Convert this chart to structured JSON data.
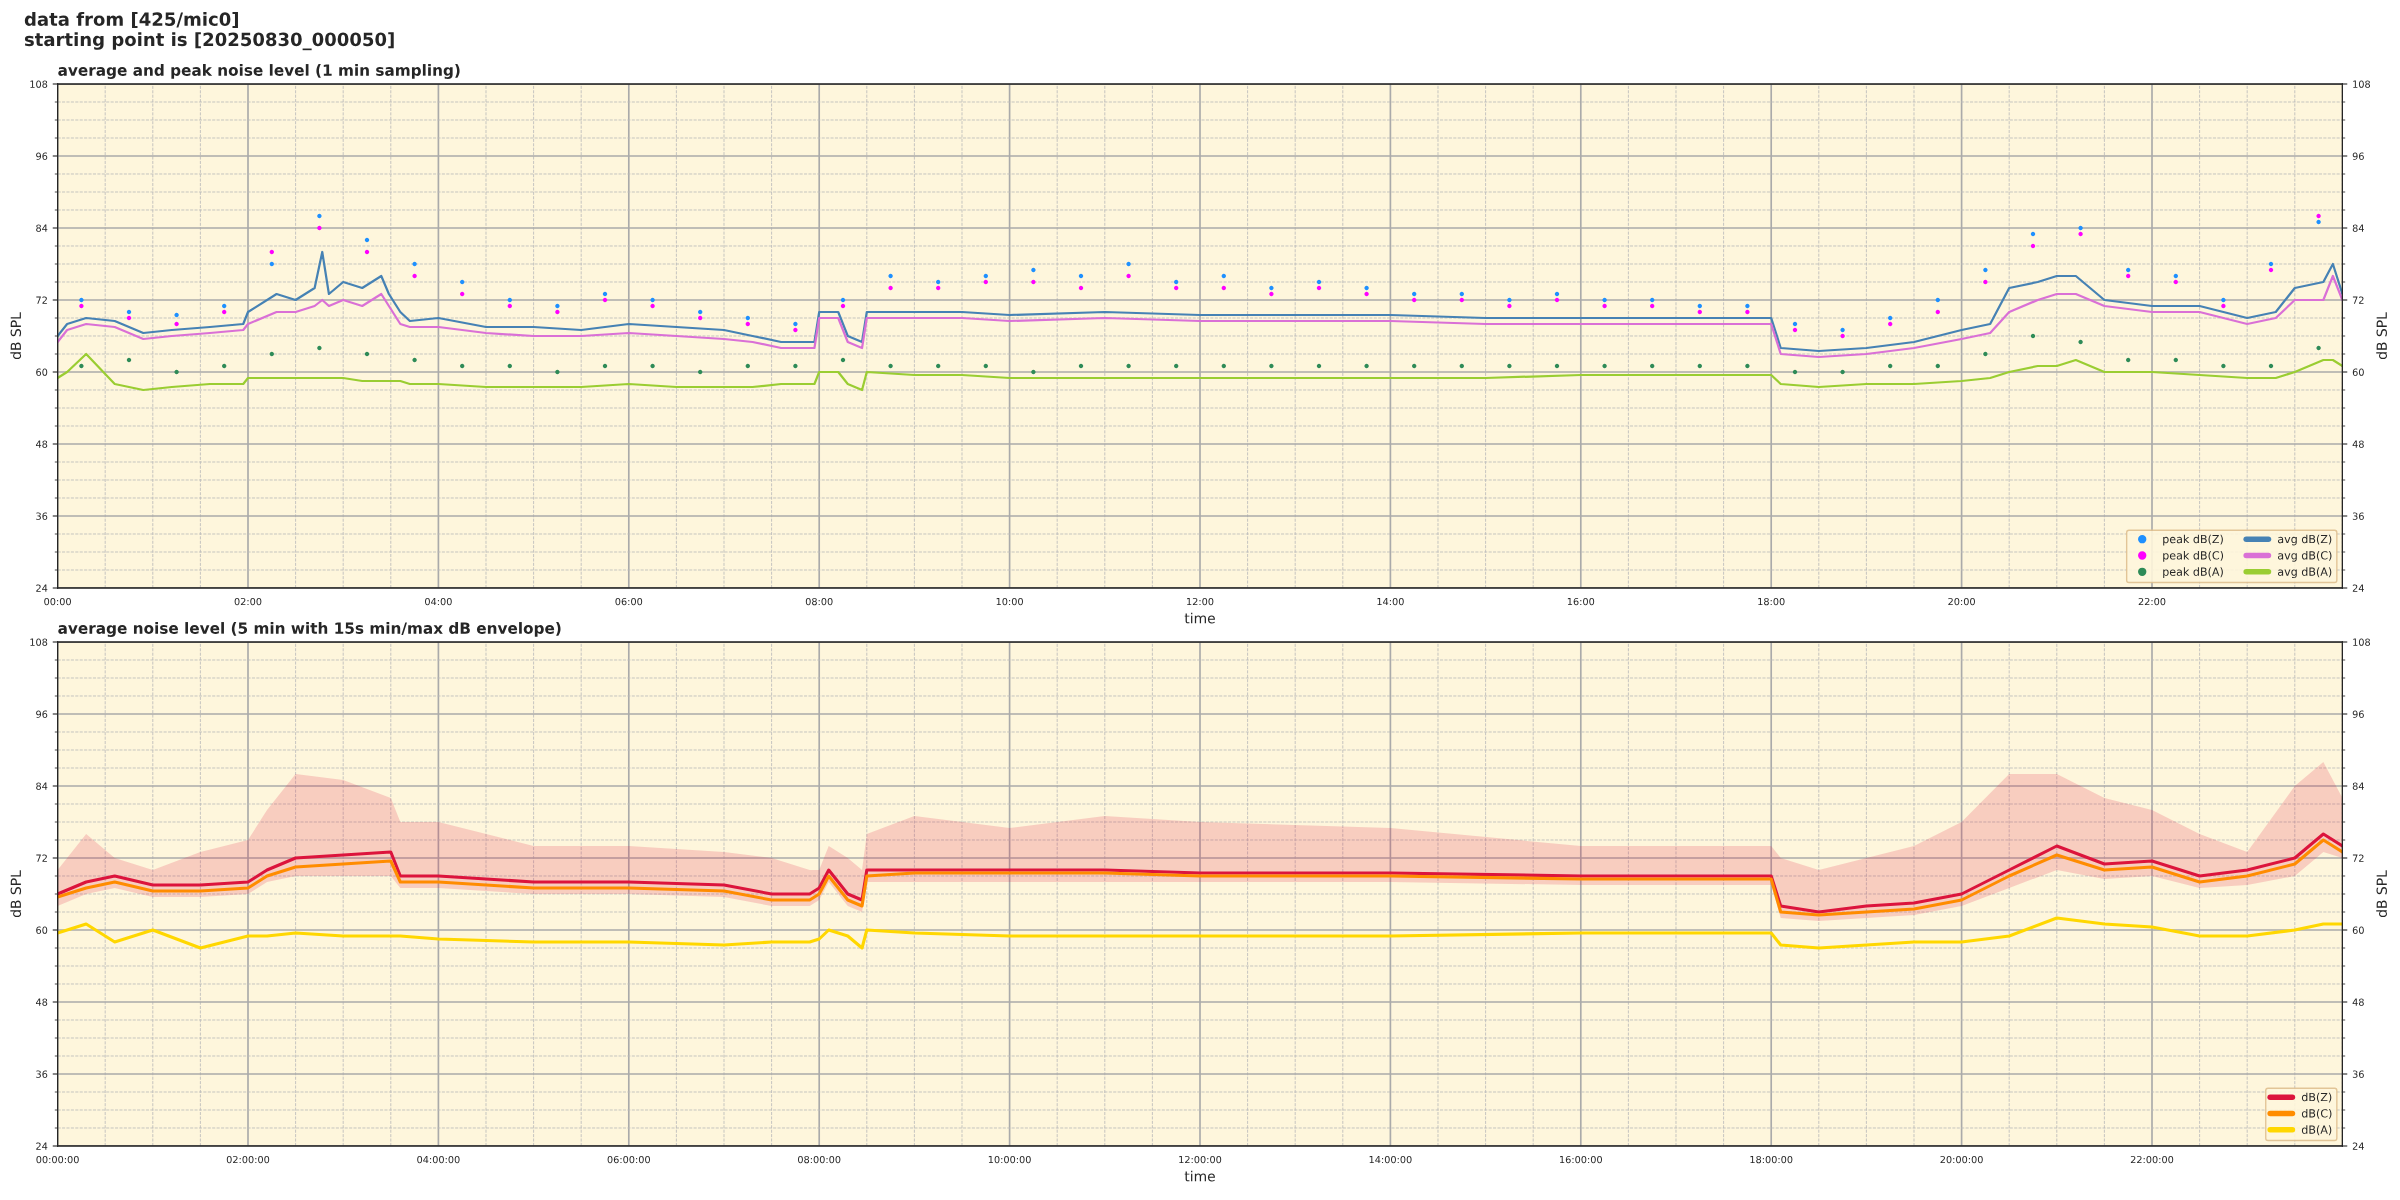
{
  "chart_data": [
    {
      "type": "scatter",
      "title": "average and peak noise level (1 min sampling)",
      "xlabel": "time",
      "ylabel": "dB SPL",
      "y2label": "dB SPL",
      "annotations": [
        "data from [425/mic0]\nstarting point is [20250830_000050]"
      ],
      "xlim": [
        0,
        24
      ],
      "xticks": [
        {
          "value": 0,
          "label": "00:00"
        },
        {
          "value": 2,
          "label": "02:00"
        },
        {
          "value": 4,
          "label": "04:00"
        },
        {
          "value": 6,
          "label": "06:00"
        },
        {
          "value": 8,
          "label": "08:00"
        },
        {
          "value": 10,
          "label": "10:00"
        },
        {
          "value": 12,
          "label": "12:00"
        },
        {
          "value": 14,
          "label": "14:00"
        },
        {
          "value": 16,
          "label": "16:00"
        },
        {
          "value": 18,
          "label": "18:00"
        },
        {
          "value": 20,
          "label": "20:00"
        },
        {
          "value": 22,
          "label": "22:00"
        }
      ],
      "ylim": [
        24,
        108
      ],
      "yticks": [
        24,
        36,
        48,
        60,
        72,
        84,
        96,
        108
      ],
      "y2lim": [
        24,
        108
      ],
      "y2ticks": [
        24,
        36,
        48,
        60,
        72,
        84,
        96,
        108
      ],
      "grid": true,
      "legend": "bottom right",
      "x": [
        0.25,
        0.75,
        1.25,
        1.75,
        2.25,
        2.75,
        3.25,
        3.75,
        4.25,
        4.75,
        5.25,
        5.75,
        6.25,
        6.75,
        7.25,
        7.75,
        8.25,
        8.75,
        9.25,
        9.75,
        10.25,
        10.75,
        11.25,
        11.75,
        12.25,
        12.75,
        13.25,
        13.75,
        14.25,
        14.75,
        15.25,
        15.75,
        16.25,
        16.75,
        17.25,
        17.75,
        18.25,
        18.75,
        19.25,
        19.75,
        20.25,
        20.75,
        21.25,
        21.75,
        22.25,
        22.75,
        23.25,
        23.75
      ],
      "series": [
        {
          "name": "peak dB(Z)",
          "type": "scatter",
          "color": "#1e90ff",
          "values": [
            72,
            70,
            69.5,
            71,
            78,
            86,
            82,
            78,
            75,
            72,
            71,
            73,
            72,
            70,
            69,
            68,
            72,
            76,
            75,
            76,
            77,
            76,
            78,
            75,
            76,
            74,
            75,
            74,
            73,
            73,
            72,
            73,
            72,
            72,
            71,
            71,
            68,
            67,
            69,
            72,
            77,
            83,
            84,
            77,
            76,
            72,
            78,
            85
          ]
        },
        {
          "name": "peak dB(C)",
          "type": "scatter",
          "color": "#ff00ff",
          "values": [
            71,
            69,
            68,
            70,
            80,
            84,
            80,
            76,
            73,
            71,
            70,
            72,
            71,
            69,
            68,
            67,
            71,
            74,
            74,
            75,
            75,
            74,
            76,
            74,
            74,
            73,
            74,
            73,
            72,
            72,
            71,
            72,
            71,
            71,
            70,
            70,
            67,
            66,
            68,
            70,
            75,
            81,
            83,
            76,
            75,
            71,
            77,
            86
          ]
        },
        {
          "name": "peak dB(A)",
          "type": "scatter",
          "color": "#2e8b57",
          "values": [
            61,
            62,
            60,
            61,
            63,
            64,
            63,
            62,
            61,
            61,
            60,
            61,
            61,
            60,
            61,
            61,
            62,
            61,
            61,
            61,
            60,
            61,
            61,
            61,
            61,
            61,
            61,
            61,
            61,
            61,
            61,
            61,
            61,
            61,
            61,
            61,
            60,
            60,
            61,
            61,
            63,
            66,
            65,
            62,
            62,
            61,
            61,
            64
          ]
        },
        {
          "name": "avg dB(Z)",
          "type": "line",
          "color": "#4682b4",
          "x": [
            0,
            0.1,
            0.3,
            0.6,
            0.9,
            1.2,
            1.6,
            1.95,
            2.0,
            2.3,
            2.5,
            2.7,
            2.78,
            2.85,
            3.0,
            3.2,
            3.4,
            3.48,
            3.6,
            3.7,
            4.0,
            4.5,
            5,
            5.5,
            6,
            6.5,
            7,
            7.3,
            7.6,
            7.95,
            8.0,
            8.2,
            8.3,
            8.45,
            8.5,
            9,
            9.5,
            10,
            11,
            12,
            13,
            14,
            15,
            16,
            17,
            18,
            18.1,
            18.5,
            19,
            19.5,
            20,
            20.3,
            20.5,
            20.8,
            21,
            21.2,
            21.5,
            22,
            22.5,
            23,
            23.3,
            23.5,
            23.8,
            23.9,
            24
          ],
          "values": [
            66,
            68,
            69,
            68.5,
            66.5,
            67,
            67.5,
            68,
            70,
            73,
            72,
            74,
            80,
            73,
            75,
            74,
            76,
            73,
            70,
            68.5,
            69,
            67.5,
            67.5,
            67,
            68,
            67.5,
            67,
            66,
            65,
            65,
            70,
            70,
            66,
            65,
            70,
            70,
            70,
            69.5,
            70,
            69.5,
            69.5,
            69.5,
            69,
            69,
            69,
            69,
            64,
            63.5,
            64,
            65,
            67,
            68,
            74,
            75,
            76,
            76,
            72,
            71,
            71,
            69,
            70,
            74,
            75,
            78,
            73
          ]
        },
        {
          "name": "avg dB(C)",
          "type": "line",
          "color": "#da70d6",
          "x": [
            0,
            0.1,
            0.3,
            0.6,
            0.9,
            1.2,
            1.6,
            1.95,
            2.0,
            2.3,
            2.5,
            2.7,
            2.78,
            2.85,
            3.0,
            3.2,
            3.4,
            3.48,
            3.6,
            3.7,
            4.0,
            4.5,
            5,
            5.5,
            6,
            6.5,
            7,
            7.3,
            7.6,
            7.95,
            8.0,
            8.2,
            8.3,
            8.45,
            8.5,
            9,
            9.5,
            10,
            11,
            12,
            13,
            14,
            15,
            16,
            17,
            18,
            18.1,
            18.5,
            19,
            19.5,
            20,
            20.3,
            20.5,
            20.8,
            21,
            21.2,
            21.5,
            22,
            22.5,
            23,
            23.3,
            23.5,
            23.8,
            23.9,
            24
          ],
          "values": [
            65,
            67,
            68,
            67.5,
            65.5,
            66,
            66.5,
            67,
            68,
            70,
            70,
            71,
            72,
            71,
            72,
            71,
            73,
            71,
            68,
            67.5,
            67.5,
            66.5,
            66,
            66,
            66.5,
            66,
            65.5,
            65,
            64,
            64,
            69,
            69,
            65,
            64,
            69,
            69,
            69,
            68.5,
            69,
            68.5,
            68.5,
            68.5,
            68,
            68,
            68,
            68,
            63,
            62.5,
            63,
            64,
            65.5,
            66.5,
            70,
            72,
            73,
            73,
            71,
            70,
            70,
            68,
            69,
            72,
            72,
            76,
            72
          ]
        },
        {
          "name": "avg dB(A)",
          "type": "line",
          "color": "#9acd32",
          "x": [
            0,
            0.1,
            0.3,
            0.6,
            0.9,
            1.2,
            1.6,
            1.95,
            2.0,
            2.3,
            2.5,
            2.7,
            2.78,
            2.85,
            3.0,
            3.2,
            3.4,
            3.48,
            3.6,
            3.7,
            4.0,
            4.5,
            5,
            5.5,
            6,
            6.5,
            7,
            7.3,
            7.6,
            7.95,
            8.0,
            8.2,
            8.3,
            8.45,
            8.5,
            9,
            9.5,
            10,
            11,
            12,
            13,
            14,
            15,
            16,
            17,
            18,
            18.1,
            18.5,
            19,
            19.5,
            20,
            20.3,
            20.5,
            20.8,
            21,
            21.2,
            21.5,
            22,
            22.5,
            23,
            23.3,
            23.5,
            23.8,
            23.9,
            24
          ],
          "values": [
            59,
            60,
            63,
            58,
            57,
            57.5,
            58,
            58,
            59,
            59,
            59,
            59,
            59,
            59,
            59,
            58.5,
            58.5,
            58.5,
            58.5,
            58,
            58,
            57.5,
            57.5,
            57.5,
            58,
            57.5,
            57.5,
            57.5,
            58,
            58,
            60,
            60,
            58,
            57,
            60,
            59.5,
            59.5,
            59,
            59,
            59,
            59,
            59,
            59,
            59.5,
            59.5,
            59.5,
            58,
            57.5,
            58,
            58,
            58.5,
            59,
            60,
            61,
            61,
            62,
            60,
            60,
            59.5,
            59,
            59,
            60,
            62,
            62,
            61
          ]
        }
      ]
    },
    {
      "type": "line",
      "title": "average noise level (5 min with 15s min/max dB envelope)",
      "xlabel": "time",
      "ylabel": "dB SPL",
      "y2label": "dB SPL",
      "xlim": [
        0,
        24
      ],
      "xticks": [
        {
          "value": 0,
          "label": "00:00:00"
        },
        {
          "value": 2,
          "label": "02:00:00"
        },
        {
          "value": 4,
          "label": "04:00:00"
        },
        {
          "value": 6,
          "label": "06:00:00"
        },
        {
          "value": 8,
          "label": "08:00:00"
        },
        {
          "value": 10,
          "label": "10:00:00"
        },
        {
          "value": 12,
          "label": "12:00:00"
        },
        {
          "value": 14,
          "label": "14:00:00"
        },
        {
          "value": 16,
          "label": "16:00:00"
        },
        {
          "value": 18,
          "label": "18:00:00"
        },
        {
          "value": 20,
          "label": "20:00:00"
        },
        {
          "value": 22,
          "label": "22:00:00"
        }
      ],
      "ylim": [
        24,
        108
      ],
      "yticks": [
        24,
        36,
        48,
        60,
        72,
        84,
        96,
        108
      ],
      "y2lim": [
        24,
        108
      ],
      "y2ticks": [
        24,
        36,
        48,
        60,
        72,
        84,
        96,
        108
      ],
      "grid": true,
      "legend": "bottom right",
      "x": [
        0,
        0.3,
        0.6,
        1,
        1.5,
        2,
        2.2,
        2.5,
        3,
        3.5,
        3.6,
        4,
        5,
        6,
        7,
        7.5,
        7.9,
        8.0,
        8.1,
        8.3,
        8.45,
        8.5,
        9,
        10,
        11,
        12,
        14,
        16,
        18,
        18.1,
        18.5,
        19,
        19.5,
        20,
        20.5,
        21,
        21.5,
        22,
        22.5,
        23,
        23.5,
        23.8,
        24
      ],
      "series": [
        {
          "name": "dB(Z)",
          "color": "#dc143c",
          "values": [
            66,
            68,
            69,
            67.5,
            67.5,
            68,
            70,
            72,
            72.5,
            73,
            69,
            69,
            68,
            68,
            67.5,
            66,
            66,
            67,
            70,
            66,
            65,
            70,
            70,
            70,
            70,
            69.5,
            69.5,
            69,
            69,
            64,
            63,
            64,
            64.5,
            66,
            70,
            74,
            71,
            71.5,
            69,
            70,
            72,
            76,
            74
          ],
          "upper": [
            70,
            76,
            72,
            70,
            73,
            75,
            80,
            86,
            85,
            82,
            78,
            78,
            74,
            74,
            73,
            72,
            70,
            70,
            74,
            72,
            70,
            76,
            79,
            77,
            79,
            78,
            77,
            74,
            74,
            72,
            70,
            72,
            74,
            78,
            86,
            86,
            82,
            80,
            76,
            73,
            84,
            88,
            82
          ],
          "lower": [
            64,
            66,
            67,
            65.5,
            65.5,
            66,
            68,
            69,
            69,
            69,
            67,
            67,
            66,
            66,
            65.5,
            64,
            64,
            65,
            68,
            64,
            63,
            68,
            68,
            68,
            68,
            68,
            68,
            67.5,
            67.5,
            62,
            61.5,
            62,
            62.5,
            64,
            67,
            70,
            68.5,
            69,
            67,
            67.5,
            69,
            73,
            72
          ]
        },
        {
          "name": "dB(C)",
          "color": "#ff8c00",
          "values": [
            65.5,
            67,
            68,
            66.5,
            66.5,
            67,
            69,
            70.5,
            71,
            71.5,
            68,
            68,
            67,
            67,
            66.5,
            65,
            65,
            66,
            69,
            65,
            64,
            69,
            69.5,
            69.5,
            69.5,
            69,
            69,
            68.5,
            68.5,
            63,
            62.5,
            63,
            63.5,
            65,
            69,
            72.5,
            70,
            70.5,
            68,
            69,
            71,
            75,
            73
          ]
        },
        {
          "name": "dB(A)",
          "color": "#ffd700",
          "values": [
            59.5,
            61,
            58,
            60,
            57,
            59,
            59,
            59.5,
            59,
            59,
            59,
            58.5,
            58,
            58,
            57.5,
            58,
            58,
            58.5,
            60,
            59,
            57,
            60,
            59.5,
            59,
            59,
            59,
            59,
            59.5,
            59.5,
            57.5,
            57,
            57.5,
            58,
            58,
            59,
            62,
            61,
            60.5,
            59,
            59,
            60,
            61,
            61
          ]
        }
      ]
    }
  ]
}
